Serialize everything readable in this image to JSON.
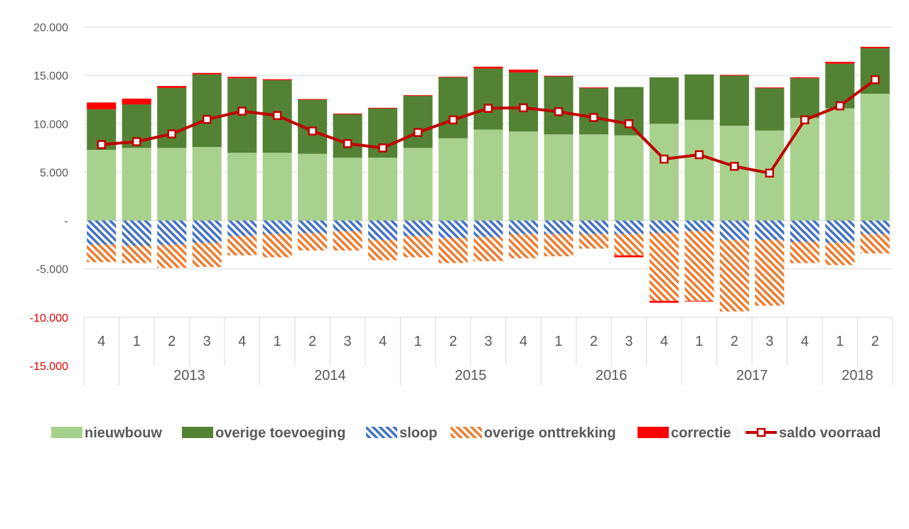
{
  "chart_data": {
    "type": "bar",
    "stacked": true,
    "ylim": [
      -15000,
      20000
    ],
    "y_ticks": [
      {
        "value": 20000,
        "label": "20.000"
      },
      {
        "value": 15000,
        "label": "15.000"
      },
      {
        "value": 10000,
        "label": "10.000"
      },
      {
        "value": 5000,
        "label": "5.000"
      },
      {
        "value": 0,
        "label": "-"
      },
      {
        "value": -5000,
        "label": "-5.000"
      },
      {
        "value": -10000,
        "label": "-10.000"
      },
      {
        "value": -15000,
        "label": "-15.000"
      }
    ],
    "grid": true,
    "legend_position": "bottom",
    "categories": [
      "4",
      "1",
      "2",
      "3",
      "4",
      "1",
      "2",
      "3",
      "4",
      "1",
      "2",
      "3",
      "4",
      "1",
      "2",
      "3",
      "4",
      "1",
      "2",
      "3",
      "4",
      "1",
      "2"
    ],
    "years": [
      {
        "label": "2013",
        "quarters": 4
      },
      {
        "label": "2014",
        "quarters": 4
      },
      {
        "label": "2015",
        "quarters": 4
      },
      {
        "label": "2016",
        "quarters": 4
      },
      {
        "label": "2017",
        "quarters": 4
      },
      {
        "label": "2018",
        "quarters": 2
      }
    ],
    "series": [
      {
        "name": "nieuwbouw",
        "kind": "bar",
        "color": "#a9d18e",
        "pattern": "solid",
        "values": [
          7300,
          7500,
          7500,
          7600,
          7000,
          7000,
          6900,
          6500,
          6500,
          7500,
          8500,
          9400,
          9200,
          8900,
          8900,
          8800,
          10000,
          10400,
          9800,
          9300,
          10600,
          11600,
          13100
        ]
      },
      {
        "name": "overige toevoeging",
        "kind": "bar",
        "color": "#548235",
        "pattern": "solid",
        "values": [
          4200,
          4500,
          6200,
          7500,
          7700,
          7500,
          5600,
          4500,
          5100,
          5400,
          6300,
          6300,
          6100,
          6000,
          4800,
          5000,
          4800,
          4700,
          5200,
          4400,
          4100,
          4600,
          4700
        ]
      },
      {
        "name": "sloop",
        "kind": "bar",
        "color": "#4472c4",
        "pattern": "hatch",
        "values": [
          -2500,
          -2600,
          -2500,
          -2300,
          -1600,
          -1400,
          -1300,
          -1100,
          -2000,
          -1600,
          -1800,
          -1700,
          -1400,
          -1400,
          -1400,
          -1400,
          -1300,
          -1100,
          -2000,
          -2000,
          -2200,
          -2300,
          -1400
        ]
      },
      {
        "name": "overige onttrekking",
        "kind": "bar",
        "color": "#ed7d31",
        "pattern": "hatch",
        "values": [
          -1800,
          -1800,
          -2400,
          -2500,
          -2000,
          -2400,
          -1800,
          -2000,
          -2100,
          -2200,
          -2600,
          -2500,
          -2500,
          -2300,
          -1500,
          -2200,
          -7000,
          -7200,
          -7400,
          -6800,
          -2200,
          -2300,
          -2000
        ]
      },
      {
        "name": "correctie",
        "kind": "bar",
        "color": "#ff0000",
        "pattern": "solid",
        "values": [
          700,
          600,
          200,
          150,
          150,
          100,
          50,
          50,
          50,
          50,
          50,
          200,
          300,
          50,
          50,
          -200,
          -200,
          -50,
          50,
          50,
          100,
          200,
          150
        ]
      },
      {
        "name": "saldo voorraad",
        "kind": "line",
        "color": "#c00000",
        "values": [
          7850,
          8150,
          8950,
          10450,
          11300,
          10850,
          9250,
          7950,
          7500,
          9100,
          10400,
          11600,
          11650,
          11250,
          10650,
          10000,
          6350,
          6800,
          5600,
          4900,
          10400,
          11850,
          14550
        ]
      }
    ]
  }
}
